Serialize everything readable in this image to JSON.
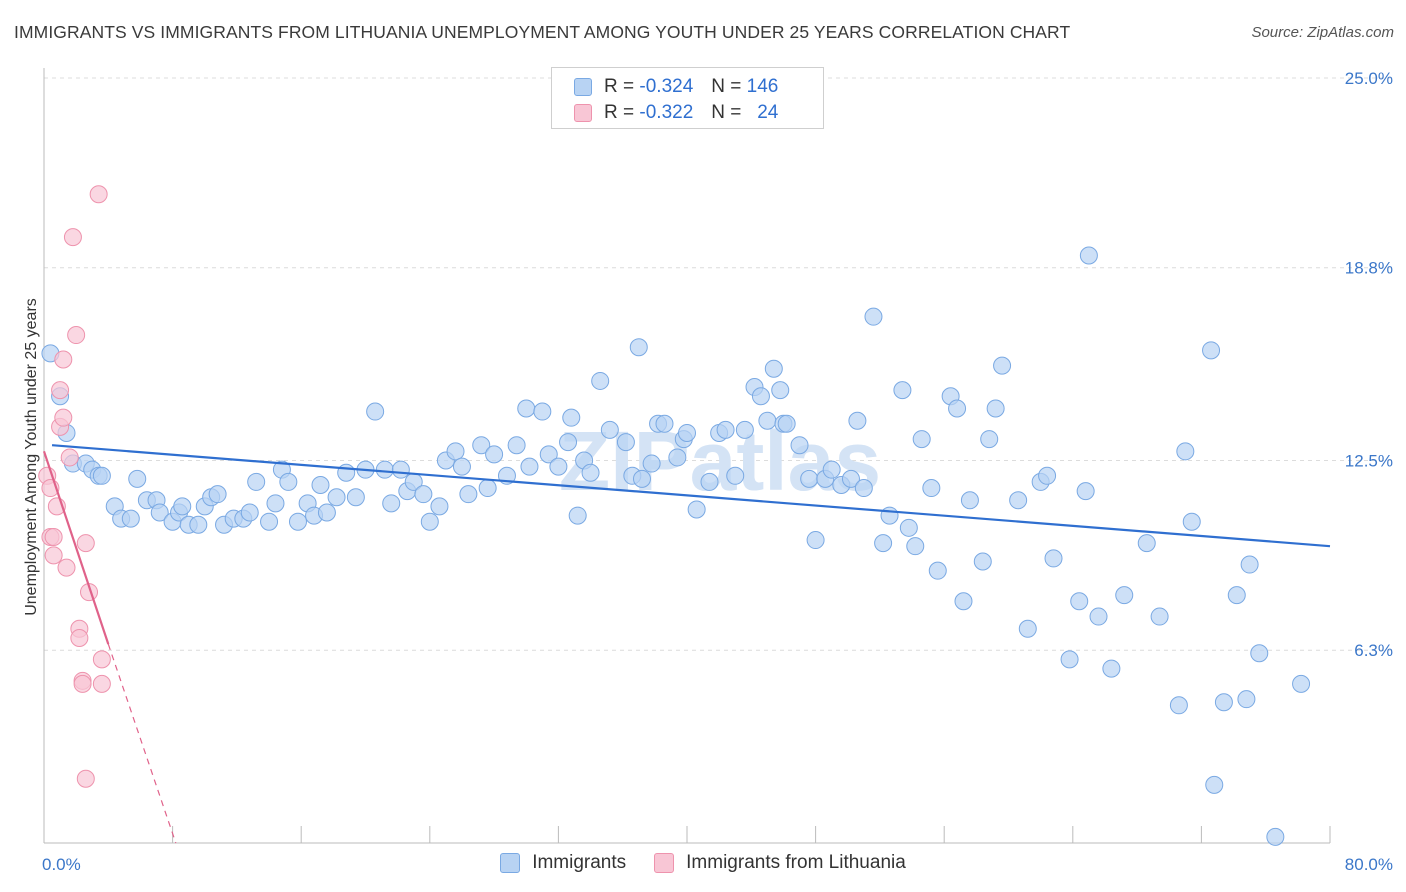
{
  "header": {
    "title": "IMMIGRANTS VS IMMIGRANTS FROM LITHUANIA UNEMPLOYMENT AMONG YOUTH UNDER 25 YEARS CORRELATION CHART",
    "source": "Source: ZipAtlas.com"
  },
  "legend": {
    "r_label": "R =",
    "n_label": "N =",
    "series": [
      {
        "r": "-0.324",
        "n": "146"
      },
      {
        "r": "-0.322",
        "n": "24"
      }
    ]
  },
  "colors": {
    "immigrants_fill": "#b8d3f3",
    "immigrants_stroke": "#7aa9e3",
    "immigrants_line": "#2f6fd0",
    "lithuania_fill": "#f8c6d5",
    "lithuania_stroke": "#ee93ad",
    "lithuania_line": "#e0628a",
    "tick_text": "#3b77c9",
    "grid": "#dcdcdc"
  },
  "chart_data": {
    "type": "scatter",
    "title": "IMMIGRANTS VS IMMIGRANTS FROM LITHUANIA UNEMPLOYMENT AMONG YOUTH UNDER 25 YEARS CORRELATION CHART",
    "xlabel": "",
    "ylabel": "Unemployment Among Youth under 25 years",
    "xlim": [
      0,
      80
    ],
    "ylim": [
      0,
      25
    ],
    "x_tick_labels": [
      "0.0%",
      "80.0%"
    ],
    "y_ticks": [
      6.3,
      12.5,
      18.8,
      25.0
    ],
    "y_tick_labels": [
      "6.3%",
      "12.5%",
      "18.8%",
      "25.0%"
    ],
    "grid": true,
    "legend_position": "top-center",
    "watermark": "ZIPatlas",
    "series": [
      {
        "name": "Immigrants",
        "r": -0.324,
        "n": 146,
        "trend": {
          "x": [
            0.5,
            80
          ],
          "y": [
            13.0,
            9.7
          ]
        },
        "points": [
          [
            0.4,
            16.0
          ],
          [
            1.0,
            14.6
          ],
          [
            1.4,
            13.4
          ],
          [
            1.8,
            12.4
          ],
          [
            2.6,
            12.4
          ],
          [
            3.0,
            12.2
          ],
          [
            3.4,
            12.0
          ],
          [
            3.6,
            12.0
          ],
          [
            4.4,
            11.0
          ],
          [
            4.8,
            10.6
          ],
          [
            5.4,
            10.6
          ],
          [
            5.8,
            11.9
          ],
          [
            6.4,
            11.2
          ],
          [
            7.0,
            11.2
          ],
          [
            7.2,
            10.8
          ],
          [
            8.0,
            10.5
          ],
          [
            8.4,
            10.8
          ],
          [
            8.6,
            11.0
          ],
          [
            9.0,
            10.4
          ],
          [
            9.6,
            10.4
          ],
          [
            10.0,
            11.0
          ],
          [
            10.4,
            11.3
          ],
          [
            10.8,
            11.4
          ],
          [
            11.2,
            10.4
          ],
          [
            11.8,
            10.6
          ],
          [
            12.4,
            10.6
          ],
          [
            12.8,
            10.8
          ],
          [
            13.2,
            11.8
          ],
          [
            14.0,
            10.5
          ],
          [
            14.4,
            11.1
          ],
          [
            14.8,
            12.2
          ],
          [
            15.2,
            11.8
          ],
          [
            15.8,
            10.5
          ],
          [
            16.4,
            11.1
          ],
          [
            16.8,
            10.7
          ],
          [
            17.2,
            11.7
          ],
          [
            17.6,
            10.8
          ],
          [
            18.2,
            11.3
          ],
          [
            18.8,
            12.1
          ],
          [
            19.4,
            11.3
          ],
          [
            20.0,
            12.2
          ],
          [
            20.6,
            14.1
          ],
          [
            21.2,
            12.2
          ],
          [
            21.6,
            11.1
          ],
          [
            22.2,
            12.2
          ],
          [
            22.6,
            11.5
          ],
          [
            23.0,
            11.8
          ],
          [
            23.6,
            11.4
          ],
          [
            24.0,
            10.5
          ],
          [
            24.6,
            11.0
          ],
          [
            25.0,
            12.5
          ],
          [
            25.6,
            12.8
          ],
          [
            26.0,
            12.3
          ],
          [
            26.4,
            11.4
          ],
          [
            27.2,
            13.0
          ],
          [
            27.6,
            11.6
          ],
          [
            28.0,
            12.7
          ],
          [
            28.8,
            12.0
          ],
          [
            29.4,
            13.0
          ],
          [
            30.0,
            14.2
          ],
          [
            30.2,
            12.3
          ],
          [
            31.0,
            14.1
          ],
          [
            31.4,
            12.7
          ],
          [
            32.0,
            12.3
          ],
          [
            32.6,
            13.1
          ],
          [
            32.8,
            13.9
          ],
          [
            33.2,
            10.7
          ],
          [
            33.6,
            12.5
          ],
          [
            34.0,
            12.1
          ],
          [
            34.6,
            15.1
          ],
          [
            35.2,
            13.5
          ],
          [
            36.2,
            13.1
          ],
          [
            36.6,
            12.0
          ],
          [
            37.0,
            16.2
          ],
          [
            37.2,
            11.9
          ],
          [
            37.8,
            12.4
          ],
          [
            38.2,
            13.7
          ],
          [
            38.6,
            13.7
          ],
          [
            39.4,
            12.6
          ],
          [
            39.8,
            13.2
          ],
          [
            40.0,
            13.4
          ],
          [
            40.6,
            10.9
          ],
          [
            41.4,
            11.8
          ],
          [
            42.0,
            13.4
          ],
          [
            42.4,
            13.5
          ],
          [
            43.0,
            12.0
          ],
          [
            43.6,
            13.5
          ],
          [
            44.2,
            14.9
          ],
          [
            44.6,
            14.6
          ],
          [
            45.0,
            13.8
          ],
          [
            45.4,
            15.5
          ],
          [
            45.8,
            14.8
          ],
          [
            46.0,
            13.7
          ],
          [
            46.2,
            13.7
          ],
          [
            47.0,
            13.0
          ],
          [
            47.6,
            11.9
          ],
          [
            48.0,
            9.9
          ],
          [
            48.6,
            11.9
          ],
          [
            49.0,
            12.2
          ],
          [
            49.6,
            11.7
          ],
          [
            50.2,
            11.9
          ],
          [
            50.6,
            13.8
          ],
          [
            51.0,
            11.6
          ],
          [
            51.6,
            17.2
          ],
          [
            52.2,
            9.8
          ],
          [
            52.6,
            10.7
          ],
          [
            53.4,
            14.8
          ],
          [
            53.8,
            10.3
          ],
          [
            54.2,
            9.7
          ],
          [
            54.6,
            13.2
          ],
          [
            55.2,
            11.6
          ],
          [
            55.6,
            8.9
          ],
          [
            56.4,
            14.6
          ],
          [
            56.8,
            14.2
          ],
          [
            57.2,
            7.9
          ],
          [
            57.6,
            11.2
          ],
          [
            58.4,
            9.2
          ],
          [
            58.8,
            13.2
          ],
          [
            59.2,
            14.2
          ],
          [
            59.6,
            15.6
          ],
          [
            60.6,
            11.2
          ],
          [
            61.2,
            7.0
          ],
          [
            62.0,
            11.8
          ],
          [
            62.4,
            12.0
          ],
          [
            62.8,
            9.3
          ],
          [
            63.8,
            6.0
          ],
          [
            64.4,
            7.9
          ],
          [
            64.8,
            11.5
          ],
          [
            65.0,
            19.2
          ],
          [
            65.6,
            7.4
          ],
          [
            66.4,
            5.7
          ],
          [
            67.2,
            8.1
          ],
          [
            68.6,
            9.8
          ],
          [
            69.4,
            7.4
          ],
          [
            70.6,
            4.5
          ],
          [
            71.0,
            12.8
          ],
          [
            71.4,
            10.5
          ],
          [
            72.6,
            16.1
          ],
          [
            72.8,
            1.9
          ],
          [
            73.4,
            4.6
          ],
          [
            74.2,
            8.1
          ],
          [
            74.8,
            4.7
          ],
          [
            75.0,
            9.1
          ],
          [
            75.6,
            6.2
          ],
          [
            76.6,
            0.2
          ],
          [
            78.2,
            5.2
          ]
        ]
      },
      {
        "name": "Immigrants from Lithuania",
        "r": -0.322,
        "n": 24,
        "trend": {
          "x": [
            0.0,
            4.0
          ],
          "y": [
            12.8,
            6.5
          ]
        },
        "trend_dashed": {
          "x": [
            4.0,
            8.2
          ],
          "y": [
            6.5,
            0.0
          ]
        },
        "points": [
          [
            0.2,
            12.0
          ],
          [
            0.4,
            11.6
          ],
          [
            0.4,
            10.0
          ],
          [
            0.6,
            10.0
          ],
          [
            0.6,
            9.4
          ],
          [
            0.8,
            11.0
          ],
          [
            1.0,
            13.6
          ],
          [
            1.0,
            14.8
          ],
          [
            1.2,
            15.8
          ],
          [
            1.2,
            13.9
          ],
          [
            1.4,
            9.0
          ],
          [
            1.6,
            12.6
          ],
          [
            1.8,
            19.8
          ],
          [
            2.0,
            16.6
          ],
          [
            2.2,
            7.0
          ],
          [
            2.2,
            6.7
          ],
          [
            2.4,
            5.3
          ],
          [
            2.4,
            5.2
          ],
          [
            2.6,
            9.8
          ],
          [
            2.6,
            2.1
          ],
          [
            2.8,
            8.2
          ],
          [
            3.4,
            21.2
          ],
          [
            3.6,
            6.0
          ],
          [
            3.6,
            5.2
          ]
        ]
      }
    ]
  },
  "bottom_legend": {
    "items": [
      "Immigrants",
      "Immigrants from Lithuania"
    ]
  }
}
